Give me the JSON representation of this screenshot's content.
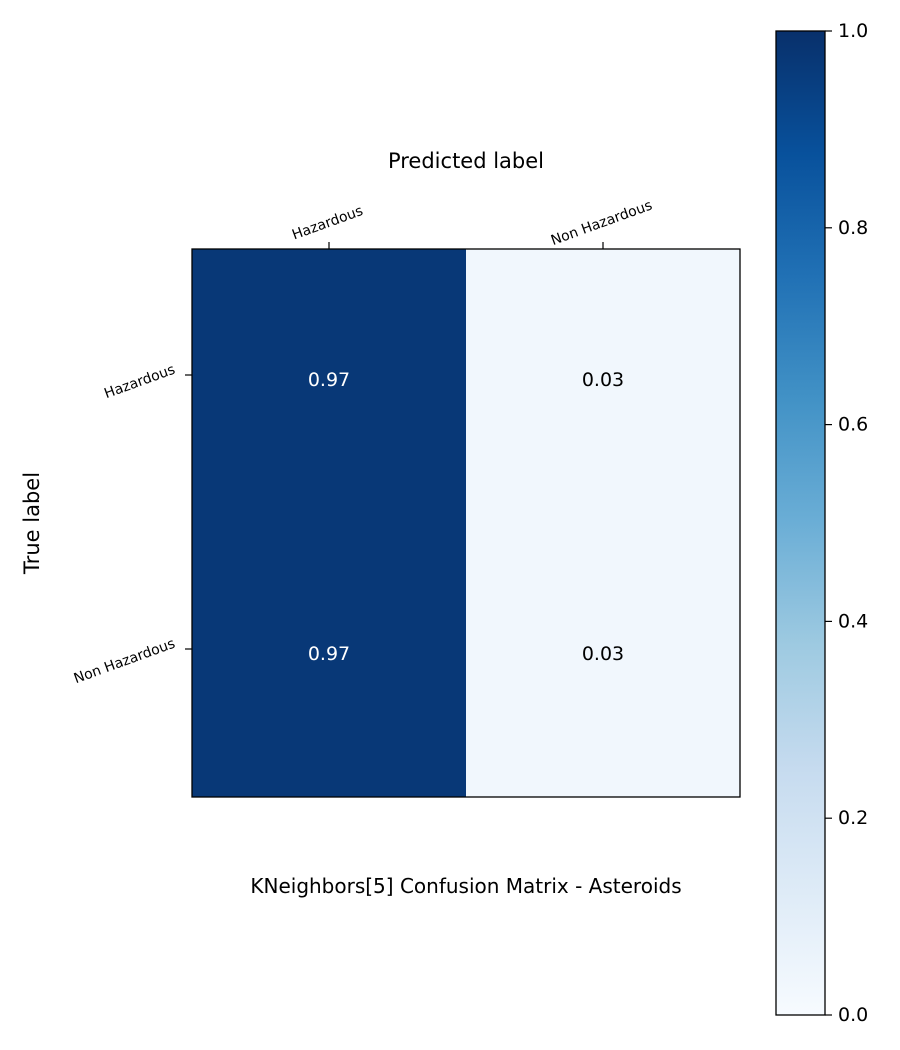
{
  "chart_data": {
    "type": "heatmap",
    "title": "KNeighbors[5]  Confusion Matrix - Asteroids",
    "xlabel": "Predicted label",
    "ylabel": "True label",
    "x_categories": [
      "Hazardous",
      "Non Hazardous"
    ],
    "y_categories": [
      "Hazardous",
      "Non Hazardous"
    ],
    "values": [
      [
        0.97,
        0.03
      ],
      [
        0.97,
        0.03
      ]
    ],
    "value_labels": [
      [
        "0.97",
        "0.03"
      ],
      [
        "0.97",
        "0.03"
      ]
    ],
    "colormap": "Blues",
    "colorbar": {
      "range": [
        0,
        1
      ],
      "ticks": [
        0.0,
        0.2,
        0.4,
        0.6,
        0.8,
        1.0
      ],
      "tick_labels": [
        "0.0",
        "0.2",
        "0.4",
        "0.6",
        "0.8",
        "1.0"
      ]
    }
  }
}
